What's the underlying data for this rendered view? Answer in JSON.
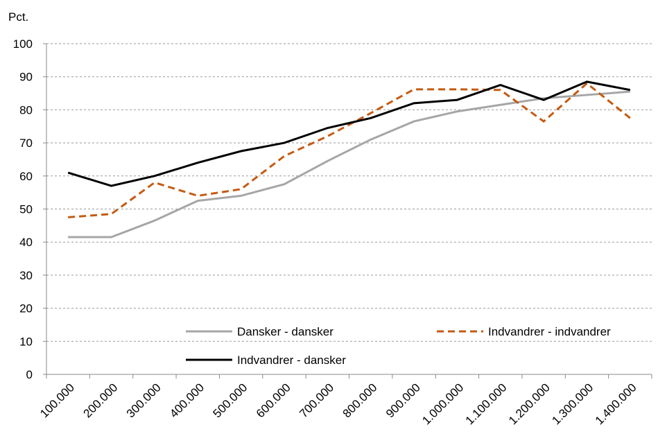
{
  "chart_data": {
    "type": "line",
    "y_label": "Pct.",
    "categories": [
      "100.000",
      "200.000",
      "300.000",
      "400.000",
      "500.000",
      "600.000",
      "700.000",
      "800.000",
      "900.000",
      "1.000.000",
      "1.100.000",
      "1.200.000",
      "1.300.000",
      "1.400.000"
    ],
    "series": [
      {
        "name": "Dansker - dansker",
        "color": "#a6a6a6",
        "dash": "solid",
        "values": [
          41.5,
          41.5,
          46.5,
          52.5,
          54,
          57.5,
          64.5,
          71,
          76.5,
          79.5,
          81.5,
          83.5,
          84.5,
          85.5
        ]
      },
      {
        "name": "Indvandrer - indvandrer",
        "color": "#c55a11",
        "dash": "dashed",
        "values": [
          47.5,
          48.5,
          58,
          54,
          56,
          66,
          72,
          79,
          86.2,
          86.2,
          86,
          76.5,
          88,
          77.5
        ]
      },
      {
        "name": "Indvandrer - dansker",
        "color": "#000000",
        "dash": "solid",
        "values": [
          61,
          57,
          60,
          64,
          67.5,
          70,
          74.5,
          77.5,
          82,
          83,
          87.5,
          83,
          88.5,
          86
        ]
      }
    ],
    "ylim": [
      0,
      100
    ],
    "yticks": [
      0,
      10,
      20,
      30,
      40,
      50,
      60,
      70,
      80,
      90,
      100
    ],
    "grid": true
  }
}
